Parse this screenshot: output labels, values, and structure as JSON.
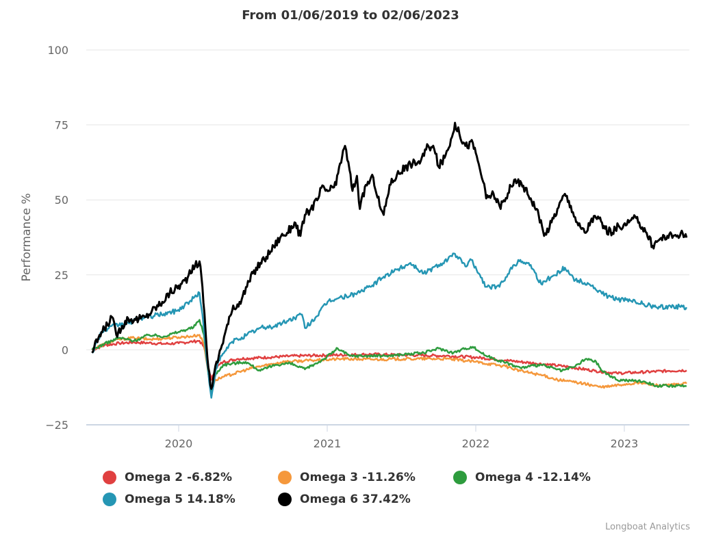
{
  "chart_data": {
    "type": "line",
    "title": "From 01/06/2019 to 02/06/2023",
    "xlabel": "",
    "ylabel": "Performance %",
    "ylim": [
      -25,
      100
    ],
    "yticks": [
      -25,
      0,
      25,
      50,
      75,
      100
    ],
    "ytick_labels": [
      "−25",
      "0",
      "25",
      "50",
      "75",
      "100"
    ],
    "xlim": [
      2019.417,
      2023.419
    ],
    "xticks": [
      2020,
      2021,
      2022,
      2023
    ],
    "xtick_labels": [
      "2020",
      "2021",
      "2022",
      "2023"
    ],
    "grid": true,
    "legend_position": "bottom-left",
    "credits": "Longboat Analytics",
    "series": [
      {
        "name": "Omega 2",
        "legend_label": "Omega 2 -6.82%",
        "color": "#e04040",
        "points": [
          [
            2019.417,
            0
          ],
          [
            2019.5,
            1.5
          ],
          [
            2019.6,
            2.2
          ],
          [
            2019.7,
            2.5
          ],
          [
            2019.8,
            2.3
          ],
          [
            2019.9,
            2.0
          ],
          [
            2020.0,
            2.2
          ],
          [
            2020.1,
            2.8
          ],
          [
            2020.14,
            3.0
          ],
          [
            2020.17,
            1.0
          ],
          [
            2020.2,
            -6
          ],
          [
            2020.22,
            -10
          ],
          [
            2020.25,
            -6
          ],
          [
            2020.3,
            -4
          ],
          [
            2020.4,
            -3
          ],
          [
            2020.6,
            -2.5
          ],
          [
            2020.8,
            -2
          ],
          [
            2021.0,
            -1.8
          ],
          [
            2021.3,
            -1.5
          ],
          [
            2021.6,
            -1.8
          ],
          [
            2021.8,
            -2
          ],
          [
            2022.0,
            -2.5
          ],
          [
            2022.2,
            -3.5
          ],
          [
            2022.4,
            -4.5
          ],
          [
            2022.6,
            -5.5
          ],
          [
            2022.8,
            -7
          ],
          [
            2022.95,
            -7.8
          ],
          [
            2023.1,
            -7.5
          ],
          [
            2023.3,
            -7
          ],
          [
            2023.419,
            -6.82
          ]
        ]
      },
      {
        "name": "Omega 3",
        "legend_label": "Omega 3 -11.26%",
        "color": "#f5983c",
        "points": [
          [
            2019.417,
            0
          ],
          [
            2019.5,
            2
          ],
          [
            2019.6,
            3.5
          ],
          [
            2019.7,
            4
          ],
          [
            2019.8,
            3.5
          ],
          [
            2019.9,
            3.8
          ],
          [
            2020.0,
            4.2
          ],
          [
            2020.1,
            4.6
          ],
          [
            2020.14,
            5
          ],
          [
            2020.17,
            2
          ],
          [
            2020.2,
            -8
          ],
          [
            2020.22,
            -13
          ],
          [
            2020.25,
            -10
          ],
          [
            2020.3,
            -9
          ],
          [
            2020.5,
            -6
          ],
          [
            2020.7,
            -4
          ],
          [
            2020.9,
            -3.5
          ],
          [
            2021.1,
            -3
          ],
          [
            2021.3,
            -3.2
          ],
          [
            2021.6,
            -3
          ],
          [
            2021.8,
            -3
          ],
          [
            2022.0,
            -4
          ],
          [
            2022.2,
            -5.5
          ],
          [
            2022.3,
            -7
          ],
          [
            2022.45,
            -8.5
          ],
          [
            2022.55,
            -10
          ],
          [
            2022.7,
            -11
          ],
          [
            2022.85,
            -12.5
          ],
          [
            2023.0,
            -11.5
          ],
          [
            2023.1,
            -11
          ],
          [
            2023.25,
            -12
          ],
          [
            2023.419,
            -11.26
          ]
        ]
      },
      {
        "name": "Omega 4",
        "legend_label": "Omega 4 -12.14%",
        "color": "#2e9c3e",
        "points": [
          [
            2019.417,
            0
          ],
          [
            2019.5,
            2
          ],
          [
            2019.6,
            4
          ],
          [
            2019.7,
            3
          ],
          [
            2019.8,
            5
          ],
          [
            2019.9,
            4.5
          ],
          [
            2020.0,
            6
          ],
          [
            2020.1,
            7.5
          ],
          [
            2020.14,
            10
          ],
          [
            2020.17,
            5
          ],
          [
            2020.2,
            -8
          ],
          [
            2020.22,
            -14
          ],
          [
            2020.25,
            -8
          ],
          [
            2020.3,
            -5
          ],
          [
            2020.45,
            -4
          ],
          [
            2020.55,
            -7
          ],
          [
            2020.65,
            -5
          ],
          [
            2020.75,
            -4.5
          ],
          [
            2020.85,
            -6.5
          ],
          [
            2020.98,
            -3
          ],
          [
            2021.07,
            0.5
          ],
          [
            2021.15,
            -2
          ],
          [
            2021.4,
            -2
          ],
          [
            2021.65,
            -1
          ],
          [
            2021.75,
            0.5
          ],
          [
            2021.85,
            -1
          ],
          [
            2021.93,
            0.5
          ],
          [
            2021.98,
            1
          ],
          [
            2022.07,
            -2
          ],
          [
            2022.3,
            -6
          ],
          [
            2022.44,
            -5
          ],
          [
            2022.58,
            -7
          ],
          [
            2022.67,
            -5.5
          ],
          [
            2022.74,
            -3
          ],
          [
            2022.81,
            -4
          ],
          [
            2022.85,
            -7
          ],
          [
            2022.95,
            -10
          ],
          [
            2023.13,
            -10.5
          ],
          [
            2023.22,
            -12
          ],
          [
            2023.419,
            -12.14
          ]
        ]
      },
      {
        "name": "Omega 5",
        "legend_label": "Omega 5 14.18%",
        "color": "#2596b4",
        "points": [
          [
            2019.417,
            -1
          ],
          [
            2019.48,
            6
          ],
          [
            2019.57,
            8
          ],
          [
            2019.66,
            9
          ],
          [
            2019.76,
            10.7
          ],
          [
            2019.9,
            12
          ],
          [
            2019.99,
            13
          ],
          [
            2020.08,
            16.4
          ],
          [
            2020.14,
            19
          ],
          [
            2020.16,
            11.8
          ],
          [
            2020.19,
            -4
          ],
          [
            2020.22,
            -16
          ],
          [
            2020.25,
            -6.4
          ],
          [
            2020.29,
            -2
          ],
          [
            2020.36,
            2.7
          ],
          [
            2020.46,
            5
          ],
          [
            2020.55,
            7.3
          ],
          [
            2020.64,
            7.8
          ],
          [
            2020.73,
            9.6
          ],
          [
            2020.83,
            11.8
          ],
          [
            2020.85,
            7.3
          ],
          [
            2020.92,
            10.7
          ],
          [
            2021.01,
            16.4
          ],
          [
            2021.1,
            17.5
          ],
          [
            2021.19,
            18.7
          ],
          [
            2021.29,
            21
          ],
          [
            2021.38,
            24.4
          ],
          [
            2021.47,
            26.7
          ],
          [
            2021.56,
            29
          ],
          [
            2021.65,
            25.5
          ],
          [
            2021.75,
            28.3
          ],
          [
            2021.84,
            31.2
          ],
          [
            2021.86,
            32
          ],
          [
            2021.93,
            27.8
          ],
          [
            2021.97,
            30
          ],
          [
            2022.02,
            25.5
          ],
          [
            2022.07,
            21
          ],
          [
            2022.16,
            21
          ],
          [
            2022.23,
            26.7
          ],
          [
            2022.3,
            30
          ],
          [
            2022.37,
            28.3
          ],
          [
            2022.44,
            22
          ],
          [
            2022.51,
            24.4
          ],
          [
            2022.6,
            27.4
          ],
          [
            2022.67,
            23.3
          ],
          [
            2022.76,
            22
          ],
          [
            2022.85,
            18.7
          ],
          [
            2022.95,
            16.9
          ],
          [
            2023.04,
            16.4
          ],
          [
            2023.13,
            15.3
          ],
          [
            2023.22,
            14.1
          ],
          [
            2023.31,
            14.6
          ],
          [
            2023.419,
            14.18
          ]
        ]
      },
      {
        "name": "Omega 6",
        "legend_label": "Omega 6 37.42%",
        "color": "#000000",
        "points": [
          [
            2019.417,
            -1
          ],
          [
            2019.46,
            4
          ],
          [
            2019.5,
            7
          ],
          [
            2019.55,
            11
          ],
          [
            2019.58,
            5
          ],
          [
            2019.62,
            8
          ],
          [
            2019.66,
            10.5
          ],
          [
            2019.71,
            10
          ],
          [
            2019.78,
            11
          ],
          [
            2019.82,
            13
          ],
          [
            2019.89,
            16
          ],
          [
            2019.94,
            19
          ],
          [
            2020.02,
            22
          ],
          [
            2020.06,
            24
          ],
          [
            2020.11,
            28
          ],
          [
            2020.14,
            29.5
          ],
          [
            2020.16,
            21
          ],
          [
            2020.18,
            7
          ],
          [
            2020.2,
            -6
          ],
          [
            2020.22,
            -13
          ],
          [
            2020.24,
            -7.5
          ],
          [
            2020.27,
            -2
          ],
          [
            2020.32,
            7
          ],
          [
            2020.36,
            13
          ],
          [
            2020.41,
            16
          ],
          [
            2020.46,
            21
          ],
          [
            2020.5,
            25.5
          ],
          [
            2020.55,
            29
          ],
          [
            2020.59,
            31
          ],
          [
            2020.64,
            34.5
          ],
          [
            2020.69,
            38
          ],
          [
            2020.73,
            39
          ],
          [
            2020.78,
            42.5
          ],
          [
            2020.82,
            38
          ],
          [
            2020.85,
            45
          ],
          [
            2020.89,
            47
          ],
          [
            2020.94,
            50.5
          ],
          [
            2020.96,
            54
          ],
          [
            2021.01,
            53
          ],
          [
            2021.06,
            55
          ],
          [
            2021.08,
            61
          ],
          [
            2021.12,
            68
          ],
          [
            2021.15,
            60
          ],
          [
            2021.17,
            53
          ],
          [
            2021.2,
            58
          ],
          [
            2021.22,
            47
          ],
          [
            2021.26,
            55
          ],
          [
            2021.31,
            57.5
          ],
          [
            2021.36,
            47
          ],
          [
            2021.38,
            45
          ],
          [
            2021.42,
            55
          ],
          [
            2021.47,
            58.5
          ],
          [
            2021.56,
            62
          ],
          [
            2021.63,
            63
          ],
          [
            2021.68,
            68
          ],
          [
            2021.72,
            67
          ],
          [
            2021.75,
            61
          ],
          [
            2021.79,
            64
          ],
          [
            2021.84,
            71
          ],
          [
            2021.86,
            75.7
          ],
          [
            2021.89,
            72
          ],
          [
            2021.93,
            68
          ],
          [
            2021.98,
            69
          ],
          [
            2022.02,
            62
          ],
          [
            2022.05,
            56
          ],
          [
            2022.07,
            50.5
          ],
          [
            2022.12,
            52
          ],
          [
            2022.16,
            48
          ],
          [
            2022.21,
            50.5
          ],
          [
            2022.23,
            55
          ],
          [
            2022.28,
            56
          ],
          [
            2022.32,
            54.7
          ],
          [
            2022.37,
            50.5
          ],
          [
            2022.41,
            47
          ],
          [
            2022.46,
            38
          ],
          [
            2022.51,
            42.5
          ],
          [
            2022.55,
            47
          ],
          [
            2022.6,
            52
          ],
          [
            2022.64,
            48
          ],
          [
            2022.69,
            41.5
          ],
          [
            2022.74,
            39
          ],
          [
            2022.78,
            43.8
          ],
          [
            2022.83,
            43.8
          ],
          [
            2022.87,
            40.4
          ],
          [
            2022.92,
            39
          ],
          [
            2022.96,
            41.5
          ],
          [
            2023.01,
            41.5
          ],
          [
            2023.06,
            43.8
          ],
          [
            2023.1,
            42.5
          ],
          [
            2023.15,
            39
          ],
          [
            2023.19,
            34.7
          ],
          [
            2023.24,
            37
          ],
          [
            2023.29,
            38
          ],
          [
            2023.33,
            38
          ],
          [
            2023.38,
            39
          ],
          [
            2023.419,
            37.42
          ]
        ]
      }
    ]
  }
}
